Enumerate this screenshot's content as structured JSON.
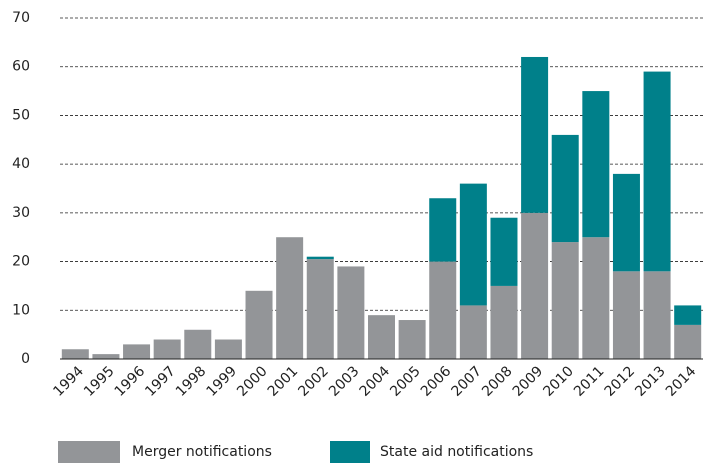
{
  "chart_data": {
    "type": "bar",
    "stacked": true,
    "categories": [
      "1994",
      "1995",
      "1996",
      "1997",
      "1998",
      "1999",
      "2000",
      "2001",
      "2002",
      "2003",
      "2004",
      "2005",
      "2006",
      "2007",
      "2008",
      "2009",
      "2010",
      "2011",
      "2012",
      "2013",
      "2014"
    ],
    "series": [
      {
        "name": "Merger notifications",
        "color": "#939598",
        "values": [
          2,
          1,
          3,
          4,
          6,
          4,
          14,
          25,
          20.5,
          19,
          9,
          8,
          20,
          11,
          15,
          30,
          24,
          25,
          18,
          18,
          7
        ]
      },
      {
        "name": "State aid notifications",
        "color": "#00808a",
        "values": [
          0,
          0,
          0,
          0,
          0,
          0,
          0,
          0,
          0.5,
          0,
          0,
          0,
          13,
          25,
          14,
          32,
          22,
          30,
          20,
          41,
          4
        ]
      }
    ],
    "ylim": [
      0,
      70
    ],
    "yticks": [
      0,
      10,
      20,
      30,
      40,
      50,
      60,
      70
    ],
    "grid": true
  }
}
